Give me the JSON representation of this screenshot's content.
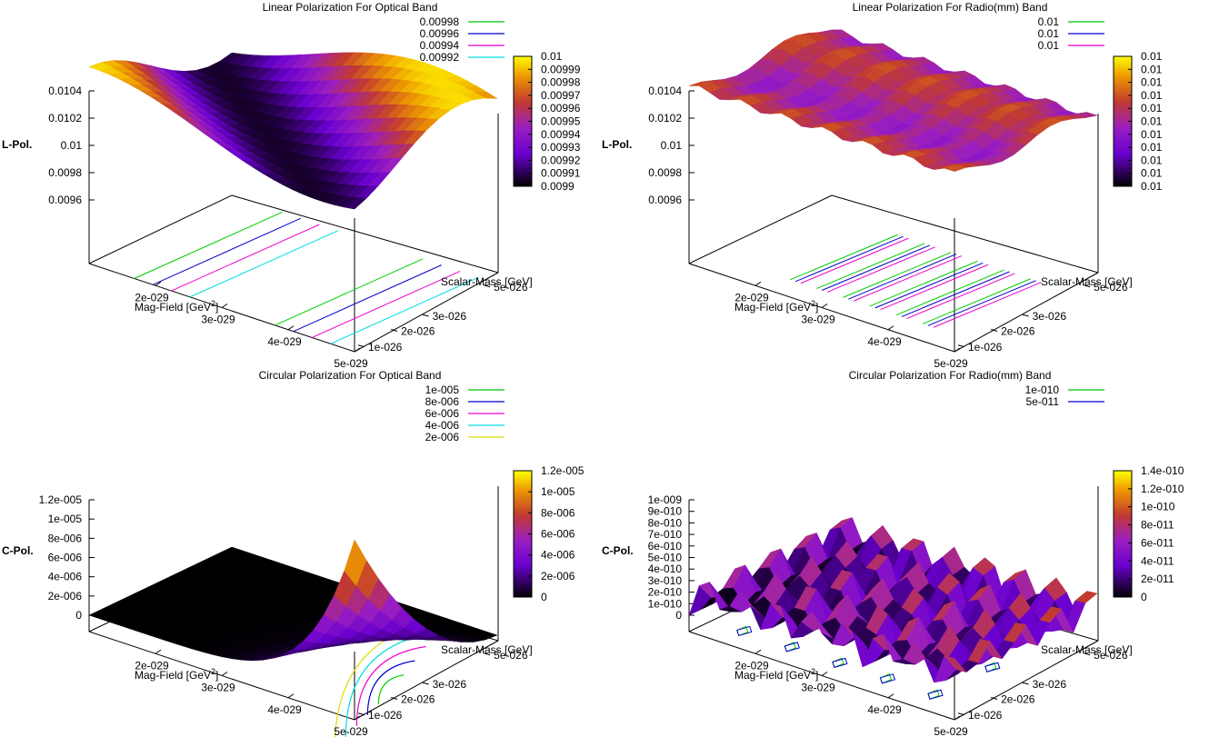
{
  "chart_data": [
    {
      "type": "surface",
      "title": "Linear Polarization For Optical Band",
      "xlabel": "Mag-Field [GeV",
      "xlabel_sup": "2",
      "xlabel_tail": "]",
      "ylabel": "Scalar-Mass [GeV]",
      "zlabel": "L-Pol.",
      "x_ticks": [
        "2e-029",
        "3e-029",
        "4e-029",
        "5e-029"
      ],
      "y_ticks": [
        "1e-026",
        "2e-026",
        "3e-026",
        "5e-026"
      ],
      "z_ticks": [
        "0.0104",
        "0.0102",
        "0.01",
        "0.0098",
        "0.0096"
      ],
      "zlim": [
        0.0095,
        0.0105
      ],
      "contour_legend": [
        {
          "label": "0.00998",
          "color": "#00cc00"
        },
        {
          "label": "0.00996",
          "color": "#0000cc"
        },
        {
          "label": "0.00994",
          "color": "#ee00cc"
        },
        {
          "label": "0.00992",
          "color": "#00dddd"
        }
      ],
      "colorbar_ticks": [
        "0.01",
        "0.00999",
        "0.00998",
        "0.00997",
        "0.00996",
        "0.00995",
        "0.00994",
        "0.00993",
        "0.00992",
        "0.00991",
        "0.0099"
      ]
    },
    {
      "type": "surface",
      "title": "Linear Polarization For Radio(mm) Band",
      "xlabel": "Mag-Field [GeV",
      "xlabel_sup": "2",
      "xlabel_tail": "]",
      "ylabel": "Scalar-Mass [GeV]",
      "zlabel": "L-Pol.",
      "x_ticks": [
        "2e-029",
        "3e-029",
        "4e-029",
        "5e-029"
      ],
      "y_ticks": [
        "1e-026",
        "2e-026",
        "3e-026",
        "5e-026"
      ],
      "z_ticks": [
        "0.0104",
        "0.0102",
        "0.01",
        "0.0098",
        "0.0096"
      ],
      "zlim": [
        0.0095,
        0.0105
      ],
      "contour_legend": [
        {
          "label": "0.01",
          "color": "#00cc00"
        },
        {
          "label": "0.01",
          "color": "#0000cc"
        },
        {
          "label": "0.01",
          "color": "#ee00cc"
        }
      ],
      "colorbar_ticks": [
        "0.01",
        "0.01",
        "0.01",
        "0.01",
        "0.01",
        "0.01",
        "0.01",
        "0.01",
        "0.01",
        "0.01",
        "0.01"
      ]
    },
    {
      "type": "surface",
      "title": "Circular Polarization For Optical Band",
      "xlabel": "Mag-Field [GeV",
      "xlabel_sup": "2",
      "xlabel_tail": "]",
      "ylabel": "Scalar-Mass [GeV]",
      "zlabel": "C-Pol.",
      "x_ticks": [
        "2e-029",
        "3e-029",
        "4e-029",
        "5e-029"
      ],
      "y_ticks": [
        "1e-026",
        "2e-026",
        "3e-026",
        "5e-026"
      ],
      "z_ticks": [
        "1.2e-005",
        "1e-005",
        "8e-006",
        "6e-006",
        "4e-006",
        "2e-006",
        "0"
      ],
      "zlim": [
        0,
        1.2e-05
      ],
      "contour_legend": [
        {
          "label": "1e-005",
          "color": "#00cc00"
        },
        {
          "label": "8e-006",
          "color": "#0000cc"
        },
        {
          "label": "6e-006",
          "color": "#ee00cc"
        },
        {
          "label": "4e-006",
          "color": "#00dddd"
        },
        {
          "label": "2e-006",
          "color": "#dddd00"
        }
      ],
      "colorbar_ticks": [
        "1.2e-005",
        "1e-005",
        "8e-006",
        "6e-006",
        "4e-006",
        "2e-006",
        "0"
      ]
    },
    {
      "type": "surface",
      "title": "Circular Polarization For Radio(mm) Band",
      "xlabel": "Mag-Field [GeV",
      "xlabel_sup": "2",
      "xlabel_tail": "]",
      "ylabel": "Scalar-Mass [GeV]",
      "zlabel": "C-Pol.",
      "x_ticks": [
        "2e-029",
        "3e-029",
        "4e-029",
        "5e-029"
      ],
      "y_ticks": [
        "1e-026",
        "2e-026",
        "3e-026",
        "5e-026"
      ],
      "z_ticks": [
        "1e-009",
        "9e-010",
        "8e-010",
        "7e-010",
        "6e-010",
        "5e-010",
        "4e-010",
        "3e-010",
        "2e-010",
        "1e-010",
        "0"
      ],
      "zlim": [
        0,
        1e-09
      ],
      "contour_legend": [
        {
          "label": "1e-010",
          "color": "#00cc00"
        },
        {
          "label": "5e-011",
          "color": "#0000cc"
        }
      ],
      "colorbar_ticks": [
        "1.4e-010",
        "1.2e-010",
        "1e-010",
        "8e-011",
        "6e-011",
        "4e-011",
        "2e-011",
        "0"
      ]
    }
  ]
}
